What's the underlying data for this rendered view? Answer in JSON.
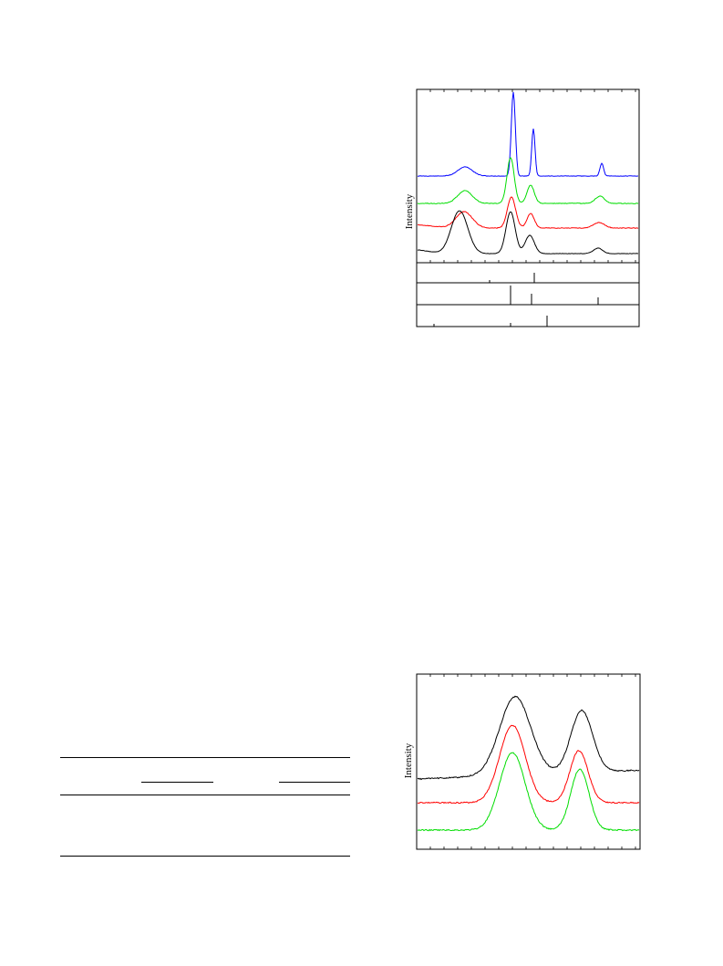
{
  "figure_top": {
    "ylabel": "Intensity",
    "colors": {
      "blue": "#0000ff",
      "green": "#00dd00",
      "red": "#ff0000",
      "black": "#000000"
    }
  },
  "figure_bottom": {
    "ylabel": "Intensity",
    "colors": {
      "black": "#000000",
      "red": "#ff0000",
      "green": "#00dd00"
    }
  },
  "table": {
    "rows": []
  }
}
